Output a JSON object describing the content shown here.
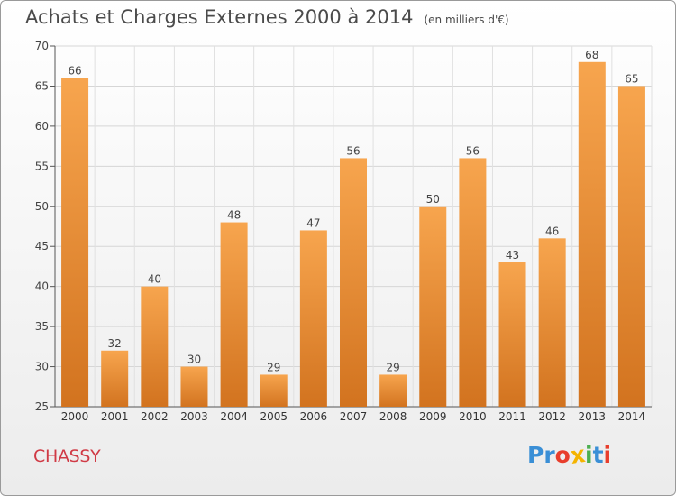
{
  "header": {
    "title": "Achats et Charges Externes 2000 à 2014",
    "subtitle": "(en milliers d'€)"
  },
  "commune": "CHASSY",
  "logo": {
    "letters": [
      {
        "ch": "P",
        "color": "#3a8fd6"
      },
      {
        "ch": "r",
        "color": "#3a8fd6"
      },
      {
        "ch": "o",
        "color": "#e83e2c"
      },
      {
        "ch": "x",
        "color": "#f4b400"
      },
      {
        "ch": "i",
        "color": "#4caf50"
      },
      {
        "ch": "t",
        "color": "#3a8fd6"
      },
      {
        "ch": "i",
        "color": "#e83e2c"
      }
    ]
  },
  "chart_data": {
    "type": "bar",
    "title": "Achats et Charges Externes 2000 à 2014",
    "subtitle": "(en milliers d'€)",
    "categories": [
      "2000",
      "2001",
      "2002",
      "2003",
      "2004",
      "2005",
      "2006",
      "2007",
      "2008",
      "2009",
      "2010",
      "2011",
      "2012",
      "2013",
      "2014"
    ],
    "values": [
      66,
      32,
      40,
      30,
      48,
      29,
      47,
      56,
      29,
      50,
      56,
      43,
      46,
      68,
      65
    ],
    "ylim": [
      25,
      70
    ],
    "yticks": [
      25,
      30,
      35,
      40,
      45,
      50,
      55,
      60,
      65,
      70
    ],
    "grid": true,
    "bar_color_top": "#f7a54e",
    "bar_color_bottom": "#d2731f",
    "data_labels": true
  }
}
